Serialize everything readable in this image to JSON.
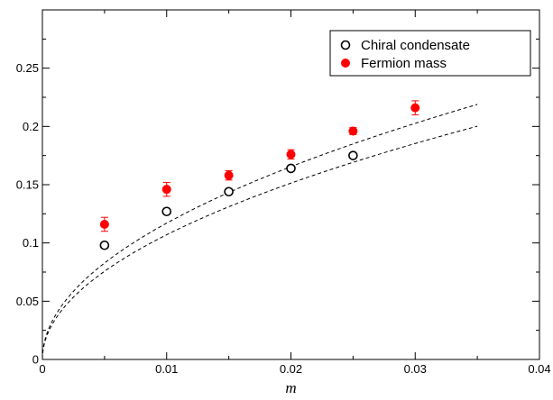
{
  "chart_data": {
    "type": "scatter",
    "title": "",
    "xlabel": "m",
    "ylabel": "",
    "xlim": [
      0,
      0.04
    ],
    "ylim": [
      0,
      0.3
    ],
    "xticks": [
      0,
      0.01,
      0.02,
      0.03,
      0.04
    ],
    "xtick_labels": [
      "0",
      "0.01",
      "0.02",
      "0.03",
      "0.04"
    ],
    "yticks": [
      0,
      0.05,
      0.1,
      0.15,
      0.2,
      0.25
    ],
    "ytick_labels": [
      "0",
      "0.05",
      "0.1",
      "0.15",
      "0.2",
      "0.25"
    ],
    "grid": false,
    "legend_position": "top-right",
    "series": [
      {
        "name": "Chiral condensate",
        "marker": "open-circle",
        "color": "#000000",
        "x": [
          0.005,
          0.01,
          0.015,
          0.02,
          0.025
        ],
        "y": [
          0.098,
          0.127,
          0.144,
          0.164,
          0.175
        ],
        "yerr": [
          0.002,
          0.002,
          0.002,
          0.002,
          0.002
        ]
      },
      {
        "name": "Fermion mass",
        "marker": "filled-circle",
        "color": "#ff0000",
        "x": [
          0.005,
          0.01,
          0.015,
          0.02,
          0.025,
          0.03
        ],
        "y": [
          0.116,
          0.146,
          0.158,
          0.176,
          0.196,
          0.216
        ],
        "yerr": [
          0.006,
          0.006,
          0.004,
          0.004,
          0.003,
          0.006
        ]
      }
    ],
    "fits": [
      {
        "kind": "dashed-curve",
        "color": "#000000",
        "form": "a*sqrt(m)",
        "a": 1.07,
        "x_range": [
          0,
          0.035
        ]
      },
      {
        "kind": "dashed-curve",
        "color": "#000000",
        "form": "a*sqrt(m)",
        "a": 1.17,
        "x_range": [
          0,
          0.035
        ]
      }
    ]
  }
}
